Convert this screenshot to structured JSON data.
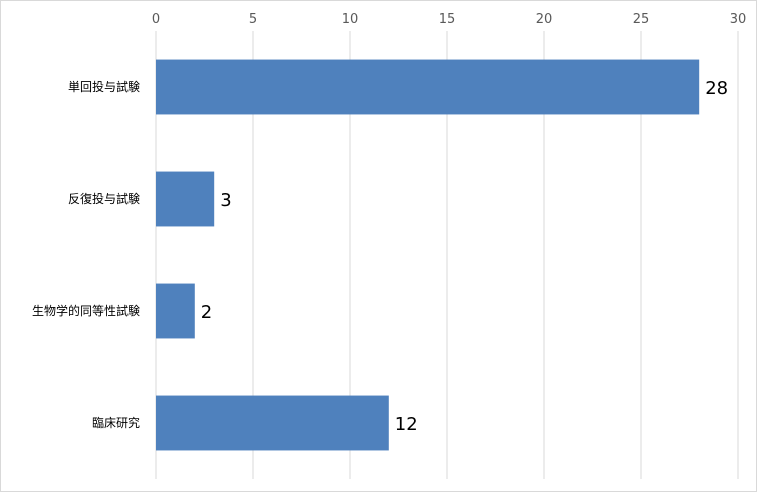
{
  "chart_data": {
    "type": "bar",
    "orientation": "horizontal",
    "categories": [
      "単回投与試験",
      "反復投与試験",
      "生物学的同等性試験",
      "臨床研究"
    ],
    "values": [
      28,
      3,
      2,
      12
    ],
    "data_labels": [
      "28",
      "3",
      "2",
      "12"
    ],
    "xlim": [
      0,
      30
    ],
    "x_ticks": [
      0,
      5,
      10,
      15,
      20,
      25,
      30
    ],
    "x_tick_labels": [
      "0",
      "5",
      "10",
      "15",
      "20",
      "25",
      "30"
    ],
    "title": "",
    "xlabel": "",
    "ylabel": "",
    "axis_position": "top",
    "grid": true,
    "legend": "none",
    "bar_color": "#4f81bd",
    "grid_color": "#d9d9d9"
  }
}
